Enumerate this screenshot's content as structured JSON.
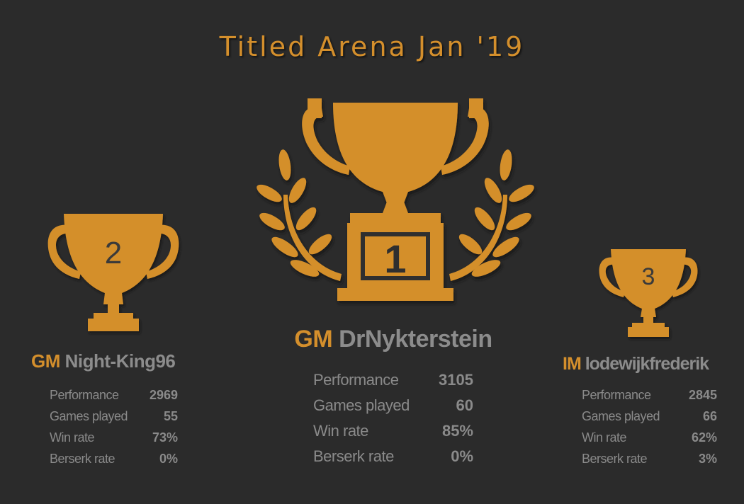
{
  "title": "Titled Arena Jan '19",
  "colors": {
    "background": "#2b2b2b",
    "gold": "#d48f2c",
    "text_grey": "#8c8c8c",
    "number_dark": "#3a3a3a"
  },
  "players": [
    {
      "rank": "1",
      "title": "GM",
      "name": "DrNykterstein",
      "stats": [
        {
          "label": "Performance",
          "value": "3105"
        },
        {
          "label": "Games played",
          "value": "60"
        },
        {
          "label": "Win rate",
          "value": "85%"
        },
        {
          "label": "Berserk rate",
          "value": "0%"
        }
      ]
    },
    {
      "rank": "2",
      "title": "GM",
      "name": "Night-King96",
      "stats": [
        {
          "label": "Performance",
          "value": "2969"
        },
        {
          "label": "Games played",
          "value": "55"
        },
        {
          "label": "Win rate",
          "value": "73%"
        },
        {
          "label": "Berserk rate",
          "value": "0%"
        }
      ]
    },
    {
      "rank": "3",
      "title": "IM",
      "name": "lodewijkfrederik",
      "stats": [
        {
          "label": "Performance",
          "value": "2845"
        },
        {
          "label": "Games played",
          "value": "66"
        },
        {
          "label": "Win rate",
          "value": "62%"
        },
        {
          "label": "Berserk rate",
          "value": "3%"
        }
      ]
    }
  ],
  "icons": [
    "trophy-icon",
    "laurel-left-icon",
    "laurel-right-icon"
  ]
}
